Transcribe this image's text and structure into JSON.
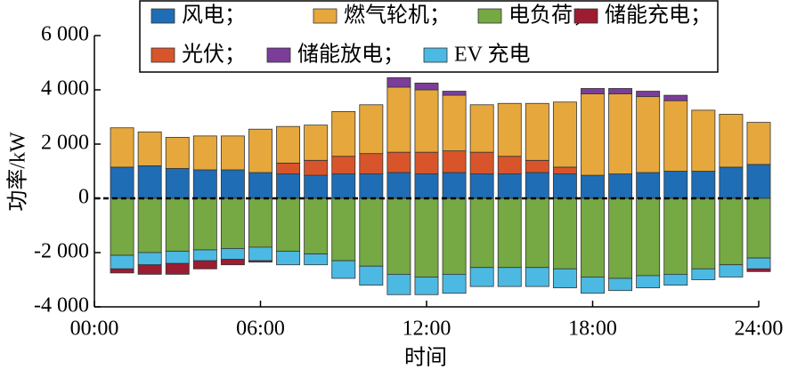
{
  "chart_data": {
    "type": "bar",
    "stacked": true,
    "x_label": "时间",
    "y_label": "功率/kW",
    "x": [
      1,
      2,
      3,
      4,
      5,
      6,
      7,
      8,
      9,
      10,
      11,
      12,
      13,
      14,
      15,
      16,
      17,
      18,
      19,
      20,
      21,
      22,
      23,
      24
    ],
    "xlim": [
      0,
      24
    ],
    "xticks": [
      {
        "value": 0,
        "label": "00:00"
      },
      {
        "value": 6,
        "label": "06:00"
      },
      {
        "value": 12,
        "label": "12:00"
      },
      {
        "value": 18,
        "label": "18:00"
      },
      {
        "value": 24,
        "label": "24:00"
      }
    ],
    "ylim": [
      -4000,
      6000
    ],
    "yticks": [
      {
        "value": -4000,
        "label": "-4 000"
      },
      {
        "value": -2000,
        "label": "-2 000"
      },
      0,
      {
        "value": 2000,
        "label": "2 000"
      },
      {
        "value": 4000,
        "label": "4 000"
      },
      {
        "value": 6000,
        "label": "6 000"
      }
    ],
    "series": [
      {
        "name": "风电；",
        "color": "#1f6db5",
        "values": [
          1150,
          1200,
          1100,
          1050,
          1050,
          950,
          900,
          850,
          900,
          900,
          950,
          900,
          950,
          900,
          900,
          950,
          900,
          850,
          900,
          950,
          1000,
          1000,
          1150,
          1250
        ]
      },
      {
        "name": "燃气轮机；",
        "color": "#e6a83c",
        "values": [
          1450,
          1250,
          1150,
          1250,
          1250,
          1600,
          1350,
          1300,
          1650,
          1800,
          2400,
          2300,
          2050,
          1750,
          1950,
          2100,
          2400,
          3000,
          2950,
          2800,
          2600,
          2250,
          1950,
          1550
        ]
      },
      {
        "name": "电负荷；",
        "color": "#76a843",
        "values": [
          -2100,
          -2000,
          -1950,
          -1900,
          -1850,
          -1800,
          -1950,
          -2050,
          -2300,
          -2500,
          -2800,
          -2900,
          -2800,
          -2550,
          -2550,
          -2550,
          -2600,
          -2900,
          -2950,
          -2850,
          -2800,
          -2600,
          -2450,
          -2200
        ]
      },
      {
        "name": "储能充电；",
        "color": "#9c1c32",
        "values": [
          -150,
          -350,
          -400,
          -300,
          -200,
          -50,
          0,
          0,
          0,
          0,
          0,
          0,
          0,
          0,
          0,
          0,
          0,
          0,
          0,
          0,
          0,
          0,
          0,
          -100
        ]
      },
      {
        "name": "光伏；",
        "color": "#d8552b",
        "values": [
          0,
          0,
          0,
          0,
          0,
          0,
          400,
          550,
          650,
          750,
          750,
          800,
          800,
          800,
          650,
          450,
          250,
          0,
          0,
          0,
          0,
          0,
          0,
          0
        ]
      },
      {
        "name": "储能放电；",
        "color": "#7b3d99",
        "values": [
          0,
          0,
          0,
          0,
          0,
          0,
          0,
          0,
          0,
          0,
          350,
          250,
          150,
          0,
          0,
          0,
          0,
          200,
          200,
          200,
          200,
          0,
          0,
          0
        ]
      },
      {
        "name": "EV 充电",
        "color": "#4cb9e3",
        "values": [
          -500,
          -450,
          -450,
          -400,
          -400,
          -500,
          -500,
          -400,
          -650,
          -700,
          -750,
          -650,
          -700,
          -700,
          -700,
          -700,
          -700,
          -600,
          -450,
          -450,
          -400,
          -400,
          -450,
          -400
        ]
      }
    ]
  }
}
